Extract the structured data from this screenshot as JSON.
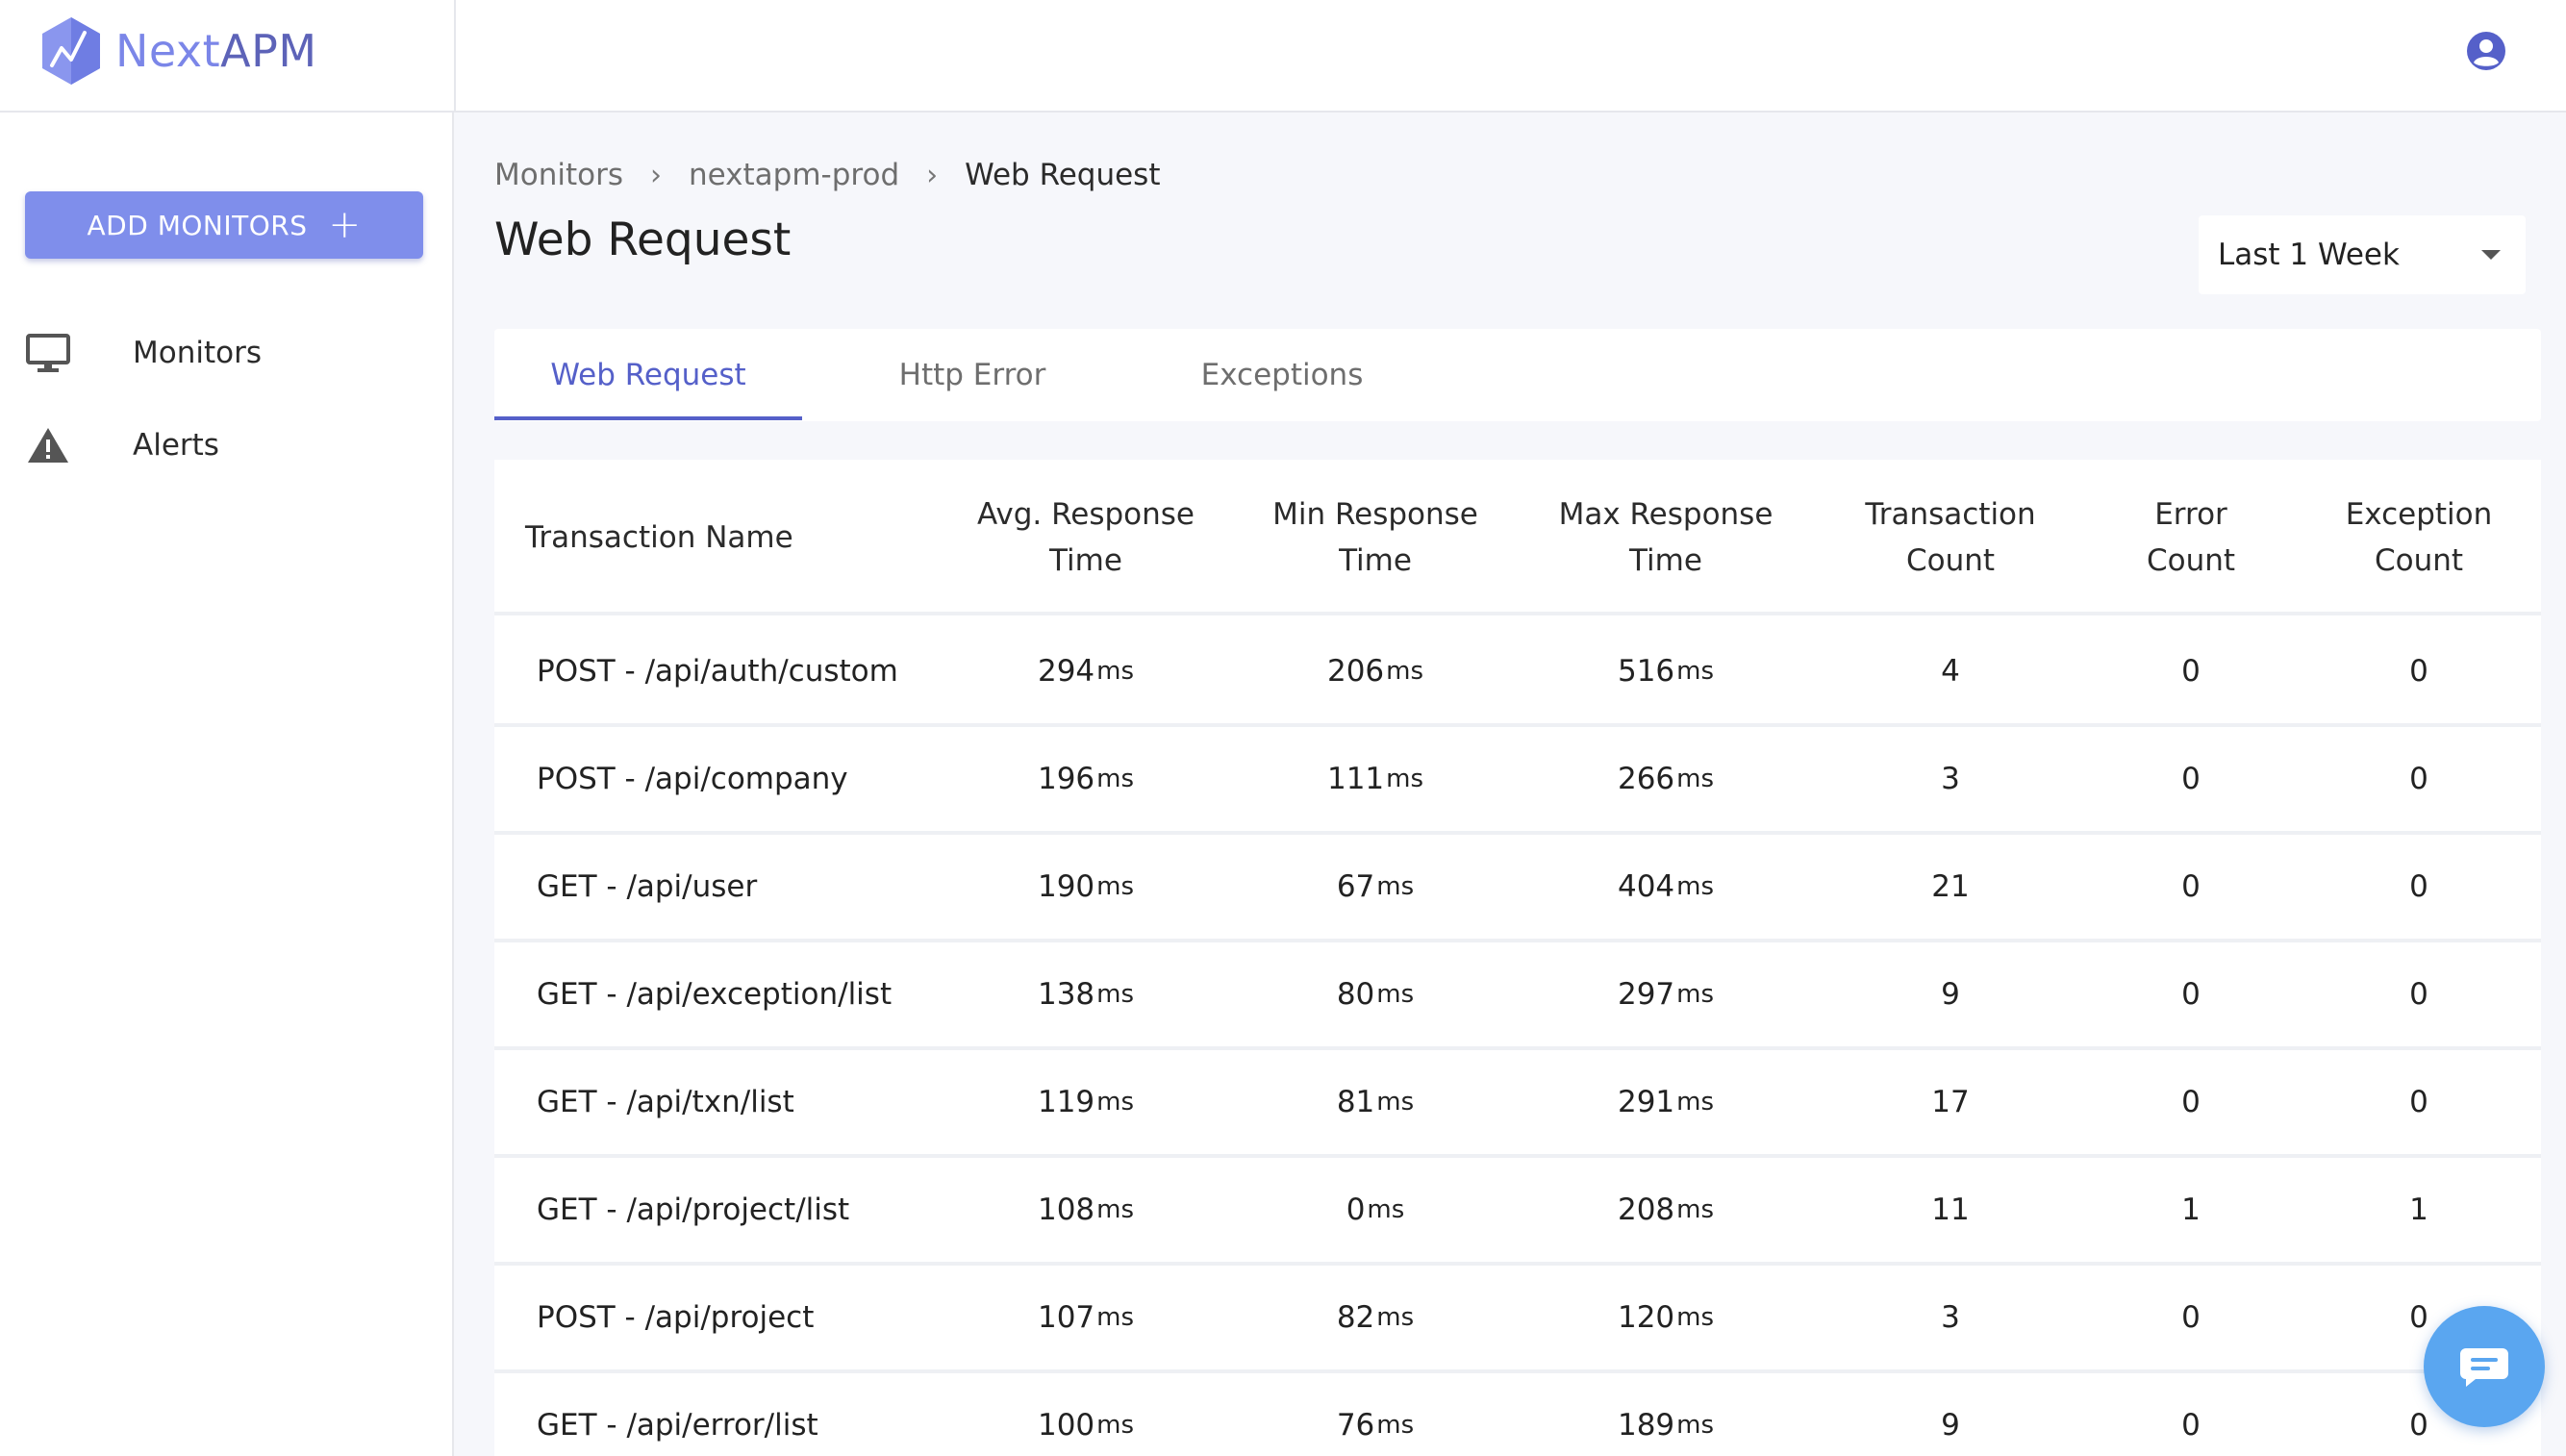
{
  "brand": {
    "name_part1": "Next",
    "name_part2": "APM",
    "logo_icon": "hexagon-chart-icon"
  },
  "header": {
    "user_icon": "account-circle-icon"
  },
  "sidebar": {
    "add_button_label": "ADD MONITORS",
    "add_button_icon": "plus-icon",
    "items": [
      {
        "label": "Monitors",
        "icon": "monitor-icon"
      },
      {
        "label": "Alerts",
        "icon": "warning-icon"
      }
    ]
  },
  "breadcrumb": [
    "Monitors",
    "nextapm-prod",
    "Web Request"
  ],
  "page_title": "Web Request",
  "time_range": {
    "selected": "Last 1 Week"
  },
  "tabs": [
    {
      "label": "Web Request",
      "active": true
    },
    {
      "label": "Http Error",
      "active": false
    },
    {
      "label": "Exceptions",
      "active": false
    }
  ],
  "table": {
    "unit": "ms",
    "columns": [
      "Transaction Name",
      "Avg. Response\nTime",
      "Min Response\nTime",
      "Max Response\nTime",
      "Transaction\nCount",
      "Error\nCount",
      "Exception\nCount"
    ],
    "rows": [
      {
        "name": "POST - /api/auth/custom",
        "avg": "294",
        "min": "206",
        "max": "516",
        "count": "4",
        "errors": "0",
        "exceptions": "0"
      },
      {
        "name": "POST - /api/company",
        "avg": "196",
        "min": "111",
        "max": "266",
        "count": "3",
        "errors": "0",
        "exceptions": "0"
      },
      {
        "name": "GET - /api/user",
        "avg": "190",
        "min": "67",
        "max": "404",
        "count": "21",
        "errors": "0",
        "exceptions": "0"
      },
      {
        "name": "GET - /api/exception/list",
        "avg": "138",
        "min": "80",
        "max": "297",
        "count": "9",
        "errors": "0",
        "exceptions": "0"
      },
      {
        "name": "GET - /api/txn/list",
        "avg": "119",
        "min": "81",
        "max": "291",
        "count": "17",
        "errors": "0",
        "exceptions": "0"
      },
      {
        "name": "GET - /api/project/list",
        "avg": "108",
        "min": "0",
        "max": "208",
        "count": "11",
        "errors": "1",
        "exceptions": "1"
      },
      {
        "name": "POST - /api/project",
        "avg": "107",
        "min": "82",
        "max": "120",
        "count": "3",
        "errors": "0",
        "exceptions": "0"
      },
      {
        "name": "GET - /api/error/list",
        "avg": "100",
        "min": "76",
        "max": "189",
        "count": "9",
        "errors": "0",
        "exceptions": "0"
      }
    ]
  },
  "chat": {
    "icon": "chat-bubble-icon"
  },
  "colors": {
    "accent": "#5560c9",
    "button": "#7f8eeb",
    "chat": "#5aa6f0"
  }
}
